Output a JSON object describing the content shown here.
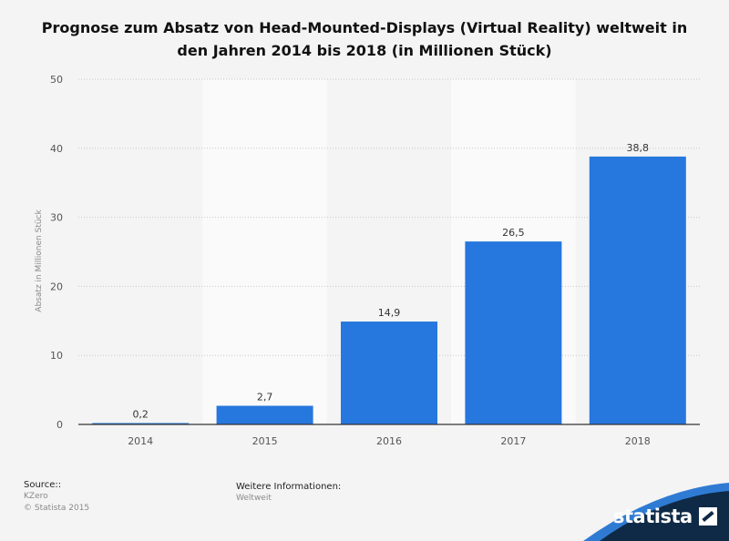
{
  "title": "Prognose zum Absatz von Head-Mounted-Displays (Virtual Reality) weltweit in den Jahren 2014 bis 2018 (in Millionen Stück)",
  "footer": {
    "source_heading": "Source::",
    "source_name": "KZero",
    "copyright": "© Statista 2015",
    "info_heading": "Weitere Informationen:",
    "info_value": "Weltweit"
  },
  "logo": {
    "text": "statista",
    "icon": "statista-logo-icon"
  },
  "colors": {
    "bar": "#2677de",
    "background": "#f4f4f4",
    "band": "#fafafa",
    "logo_band": "#0e2a47",
    "logo_accent": "#2f7bd4"
  },
  "chart_data": {
    "type": "bar",
    "categories": [
      "2014",
      "2015",
      "2016",
      "2017",
      "2018"
    ],
    "values": [
      0.2,
      2.7,
      14.9,
      26.5,
      38.8
    ],
    "value_labels": [
      "0,2",
      "2,7",
      "14,9",
      "26,5",
      "38,8"
    ],
    "ylabel": "Absatz in Millionen Stück",
    "xlabel": "",
    "ylim": [
      0,
      50
    ],
    "yticks": [
      0,
      10,
      20,
      30,
      40,
      50
    ],
    "grid": true,
    "legend": "none"
  }
}
